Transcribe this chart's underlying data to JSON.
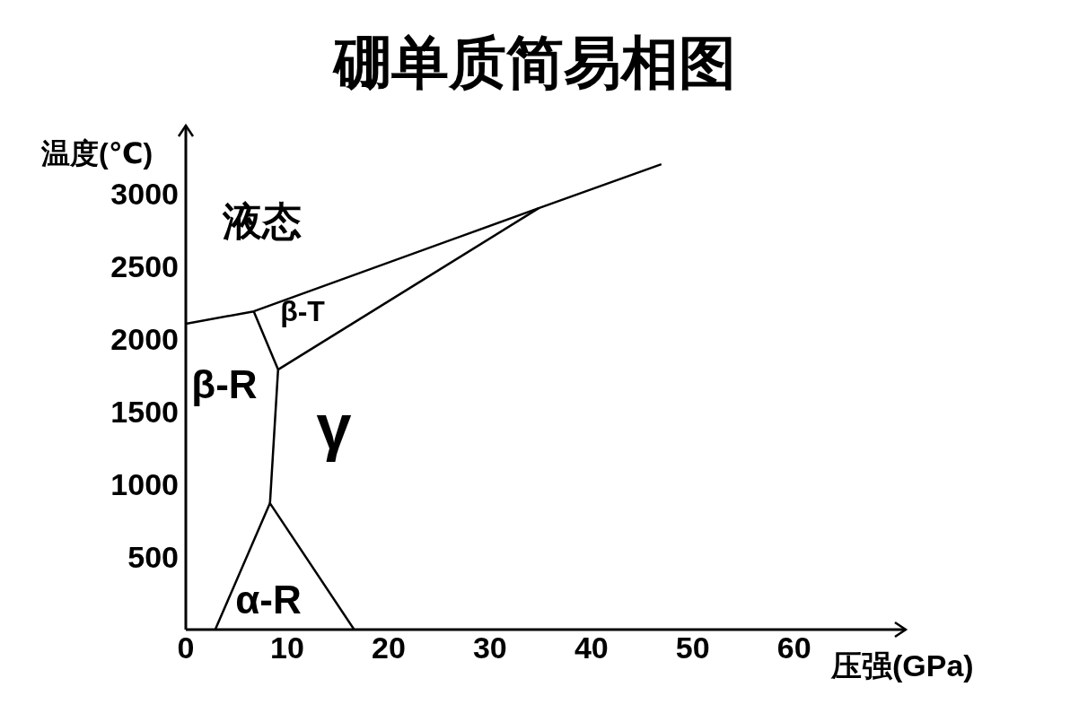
{
  "chart_data": {
    "type": "line",
    "title": "硼单质简易相图",
    "xlabel": "压强(GPa)",
    "ylabel": "温度(℃)",
    "xlim": [
      0,
      71
    ],
    "ylim": [
      0,
      3470
    ],
    "xticks": [
      0,
      10,
      20,
      30,
      40,
      50,
      60
    ],
    "yticks": [
      500,
      1000,
      1500,
      2000,
      2500,
      3000
    ],
    "grid": false,
    "legend": false,
    "marker": "none",
    "line_style": "solid",
    "series": [
      {
        "color": "#000000",
        "x": [
          0,
          6.7,
          34.8,
          46.9
        ],
        "values": [
          2105,
          2191,
          2901,
          3204
        ]
      },
      {
        "color": "#000000",
        "x": [
          6.7,
          9.1,
          8.3
        ],
        "values": [
          2191,
          1790,
          870
        ]
      },
      {
        "color": "#000000",
        "x": [
          9.1,
          34.8
        ],
        "values": [
          1790,
          2901
        ]
      },
      {
        "color": "#000000",
        "x": [
          2.9,
          8.3,
          16.6
        ],
        "values": [
          0,
          870,
          0
        ]
      }
    ],
    "annotations": [
      "液态",
      "β-T",
      "β-R",
      "γ",
      "α-R"
    ]
  }
}
